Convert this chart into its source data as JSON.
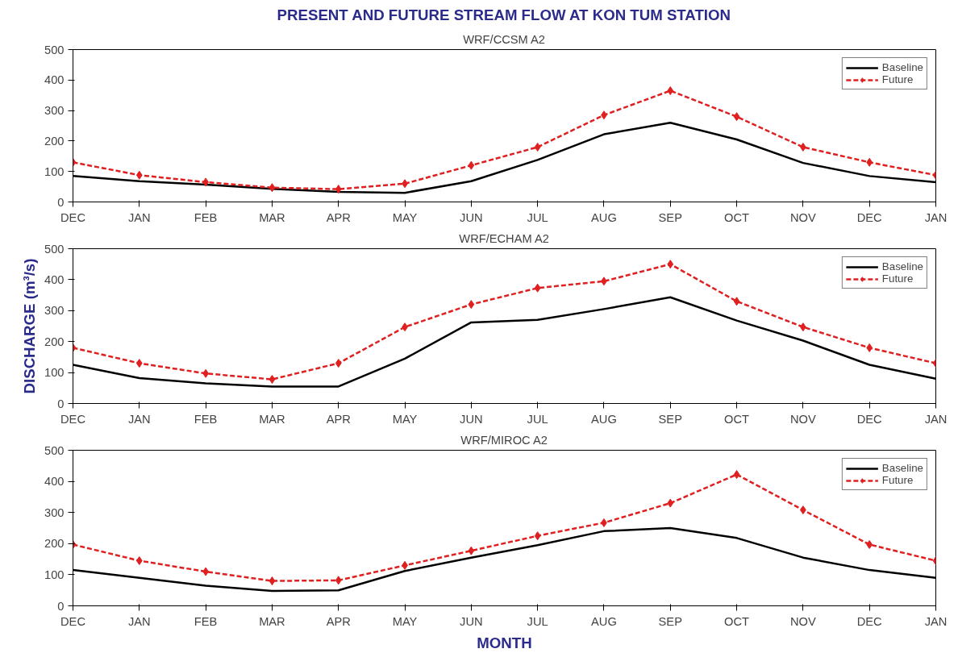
{
  "chart_data": [
    {
      "type": "line",
      "title": "PRESENT AND FUTURE STREAM FLOW AT KON TUM STATION",
      "subtitle": "WRF/CCSM A2",
      "categories": [
        "DEC",
        "JAN",
        "FEB",
        "MAR",
        "APR",
        "MAY",
        "JUN",
        "JUL",
        "AUG",
        "SEP",
        "OCT",
        "NOV",
        "DEC",
        "JAN"
      ],
      "ylim": [
        0,
        500
      ],
      "yticks": [
        0,
        100,
        200,
        300,
        400,
        500
      ],
      "legend": "top right",
      "grid": false,
      "series": [
        {
          "name": "Baseline",
          "color": "#000000",
          "line_style": "solid",
          "marker": "none",
          "values": [
            85,
            68,
            57,
            43,
            33,
            30,
            68,
            138,
            222,
            260,
            205,
            128,
            85,
            65
          ]
        },
        {
          "name": "Future",
          "color": "#e02020",
          "line_style": "dashed",
          "marker": "diamond",
          "values": [
            130,
            88,
            65,
            47,
            42,
            60,
            120,
            180,
            285,
            365,
            280,
            180,
            130,
            88
          ]
        }
      ]
    },
    {
      "type": "line",
      "subtitle": "WRF/ECHAM A2",
      "ylabel": "DISCHARGE (m³/s)",
      "categories": [
        "DEC",
        "JAN",
        "FEB",
        "MAR",
        "APR",
        "MAY",
        "JUN",
        "JUL",
        "AUG",
        "SEP",
        "OCT",
        "NOV",
        "DEC",
        "JAN"
      ],
      "ylim": [
        0,
        500
      ],
      "yticks": [
        0,
        100,
        200,
        300,
        400,
        500
      ],
      "legend": "top right",
      "grid": false,
      "series": [
        {
          "name": "Baseline",
          "color": "#000000",
          "line_style": "solid",
          "marker": "none",
          "values": [
            125,
            82,
            65,
            55,
            55,
            145,
            262,
            270,
            305,
            343,
            268,
            203,
            125,
            80
          ]
        },
        {
          "name": "Future",
          "color": "#e02020",
          "line_style": "dashed",
          "marker": "diamond",
          "values": [
            180,
            130,
            97,
            78,
            130,
            247,
            320,
            373,
            395,
            450,
            330,
            247,
            180,
            130
          ]
        }
      ]
    },
    {
      "type": "line",
      "subtitle": "WRF/MIROC A2",
      "xlabel": "MONTH",
      "categories": [
        "DEC",
        "JAN",
        "FEB",
        "MAR",
        "APR",
        "MAY",
        "JUN",
        "JUL",
        "AUG",
        "SEP",
        "OCT",
        "NOV",
        "DEC",
        "JAN"
      ],
      "ylim": [
        0,
        500
      ],
      "yticks": [
        0,
        100,
        200,
        300,
        400,
        500
      ],
      "legend": "top right",
      "grid": false,
      "series": [
        {
          "name": "Baseline",
          "color": "#000000",
          "line_style": "solid",
          "marker": "none",
          "values": [
            115,
            90,
            65,
            48,
            50,
            112,
            155,
            195,
            240,
            250,
            218,
            155,
            115,
            90
          ]
        },
        {
          "name": "Future",
          "color": "#e02020",
          "line_style": "dashed",
          "marker": "diamond",
          "values": [
            197,
            145,
            110,
            80,
            82,
            130,
            177,
            225,
            267,
            330,
            422,
            308,
            197,
            145
          ]
        }
      ]
    }
  ]
}
